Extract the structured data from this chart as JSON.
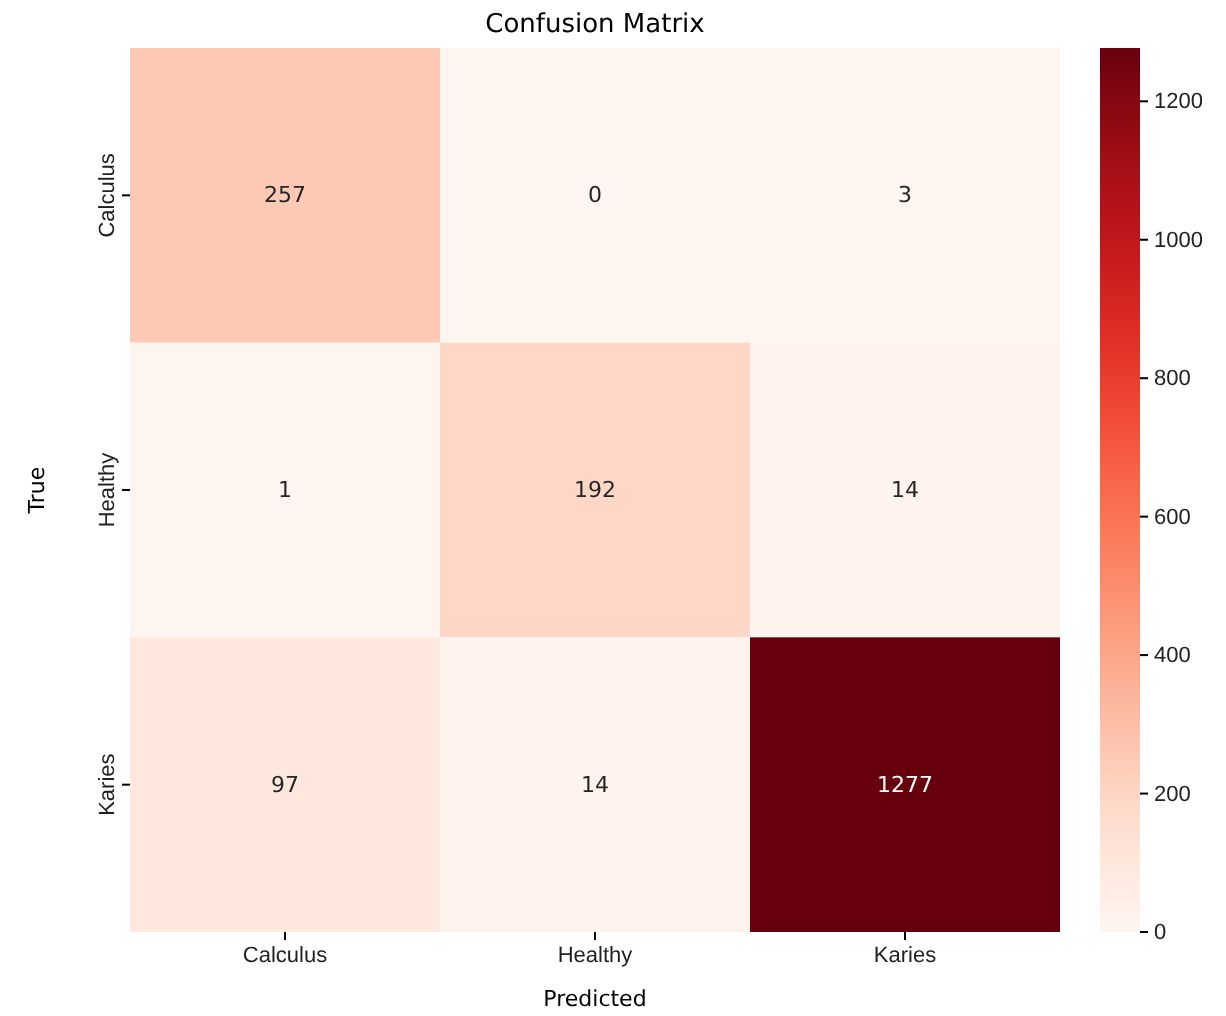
{
  "chart_data": {
    "type": "heatmap",
    "title": "Confusion Matrix",
    "xlabel": "Predicted",
    "ylabel": "True",
    "categories": [
      "Calculus",
      "Healthy",
      "Karies"
    ],
    "y_categories": [
      "Calculus",
      "Healthy",
      "Karies"
    ],
    "cells": [
      [
        257,
        0,
        3
      ],
      [
        1,
        192,
        14
      ],
      [
        97,
        14,
        1277
      ]
    ],
    "data_labels": true,
    "clim": [
      0,
      1277
    ],
    "cticks": [
      0,
      200,
      400,
      600,
      800,
      1000,
      1200
    ]
  }
}
